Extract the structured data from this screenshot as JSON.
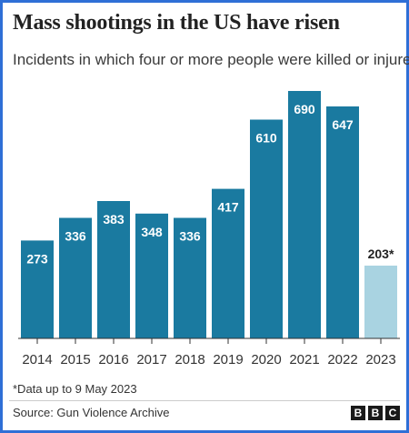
{
  "header": {
    "title": "Mass shootings in the US have risen",
    "subtitle": "Incidents in which four or more people were killed or injured"
  },
  "footer": {
    "footnote": "*Data up to 9 May 2023",
    "source": "Source: Gun Violence Archive",
    "logo_letters": [
      "B",
      "B",
      "C"
    ]
  },
  "colors": {
    "bar": "#1a7aa0",
    "bar_partial": "#a9d3e1",
    "value_label_on_bar": "#ffffff",
    "value_label_above": "#222222",
    "border": "#2f6fd6"
  },
  "chart_data": {
    "type": "bar",
    "title": "Mass shootings in the US have risen",
    "subtitle": "Incidents in which four or more people were killed or injured",
    "xlabel": "",
    "ylabel": "",
    "categories": [
      "2014",
      "2015",
      "2016",
      "2017",
      "2018",
      "2019",
      "2020",
      "2021",
      "2022",
      "2023"
    ],
    "values": [
      273,
      336,
      383,
      348,
      336,
      417,
      610,
      690,
      647,
      203
    ],
    "value_labels": [
      "273",
      "336",
      "383",
      "348",
      "336",
      "417",
      "610",
      "690",
      "647",
      "203*"
    ],
    "partial": [
      false,
      false,
      false,
      false,
      false,
      false,
      false,
      false,
      false,
      true
    ],
    "ylim": [
      0,
      690
    ],
    "grid": false,
    "legend": "none"
  }
}
